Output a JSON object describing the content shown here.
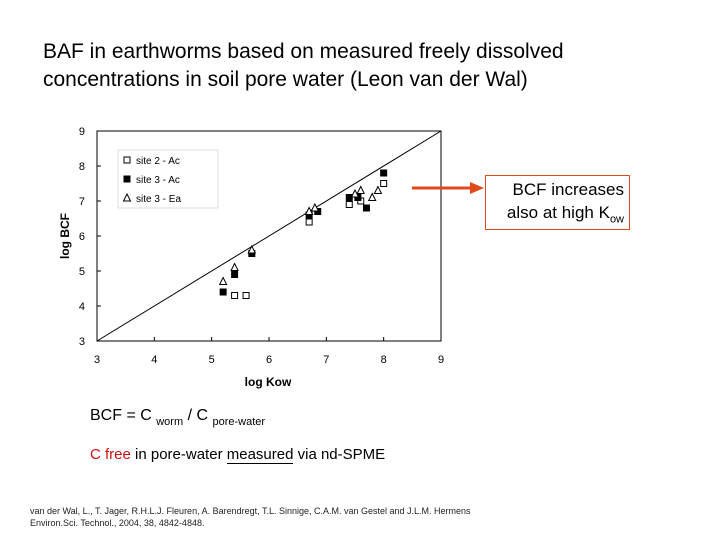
{
  "title": {
    "line1": "BAF in earthworms based on measured freely dissolved",
    "line2": "concentrations in soil pore water (Leon van der Wal)"
  },
  "callout": {
    "line1": "BCF increases",
    "line2_main": "also at high K",
    "line2_sub": "ow"
  },
  "formula": {
    "prefix": "BCF = C ",
    "sub1": "worm",
    "mid": " / C ",
    "sub2": "pore-water"
  },
  "free_line": {
    "red": "C free",
    "rest": " in  pore-water ",
    "measured": "measured",
    "tail": " via nd-SPME"
  },
  "reference": {
    "line1": "van der Wal, L., T. Jager, R.H.L.J. Fleuren, A. Barendregt, T.L. Sinnige, C.A.M. van Gestel and J.L.M. Hermens",
    "line2": "Environ.Sci. Technol., 2004, 38, 4842-4848."
  },
  "colors": {
    "accent": "#e04a1a",
    "red_text": "#cc1111",
    "line": "#000000"
  },
  "chart_data": {
    "type": "scatter",
    "xlabel": "log Kow",
    "ylabel": "log BCF",
    "xlim": [
      3,
      9
    ],
    "ylim": [
      3,
      9
    ],
    "xticks": [
      3,
      4,
      5,
      6,
      7,
      8,
      9
    ],
    "yticks": [
      3,
      4,
      5,
      6,
      7,
      8,
      9
    ],
    "legend_position": "top-left",
    "reference_line": {
      "x": [
        3,
        9
      ],
      "y": [
        3,
        9
      ]
    },
    "series": [
      {
        "name": "site 2 - Ac",
        "marker": "square-open",
        "points": [
          [
            5.4,
            4.3
          ],
          [
            5.6,
            4.3
          ],
          [
            6.7,
            6.4
          ],
          [
            7.4,
            6.9
          ],
          [
            7.6,
            7.0
          ],
          [
            8.0,
            7.5
          ]
        ]
      },
      {
        "name": "site 3 - Ac",
        "marker": "square-filled",
        "points": [
          [
            5.2,
            4.4
          ],
          [
            5.4,
            4.9
          ],
          [
            5.7,
            5.5
          ],
          [
            6.7,
            6.6
          ],
          [
            6.85,
            6.7
          ],
          [
            7.4,
            7.1
          ],
          [
            7.55,
            7.1
          ],
          [
            7.7,
            6.8
          ],
          [
            8.0,
            7.8
          ]
        ]
      },
      {
        "name": "site 3 - Ea",
        "marker": "triangle-open",
        "points": [
          [
            5.2,
            4.7
          ],
          [
            5.4,
            5.1
          ],
          [
            5.7,
            5.6
          ],
          [
            6.7,
            6.7
          ],
          [
            6.8,
            6.8
          ],
          [
            7.5,
            7.2
          ],
          [
            7.6,
            7.3
          ],
          [
            7.8,
            7.1
          ],
          [
            7.9,
            7.3
          ]
        ]
      }
    ]
  }
}
